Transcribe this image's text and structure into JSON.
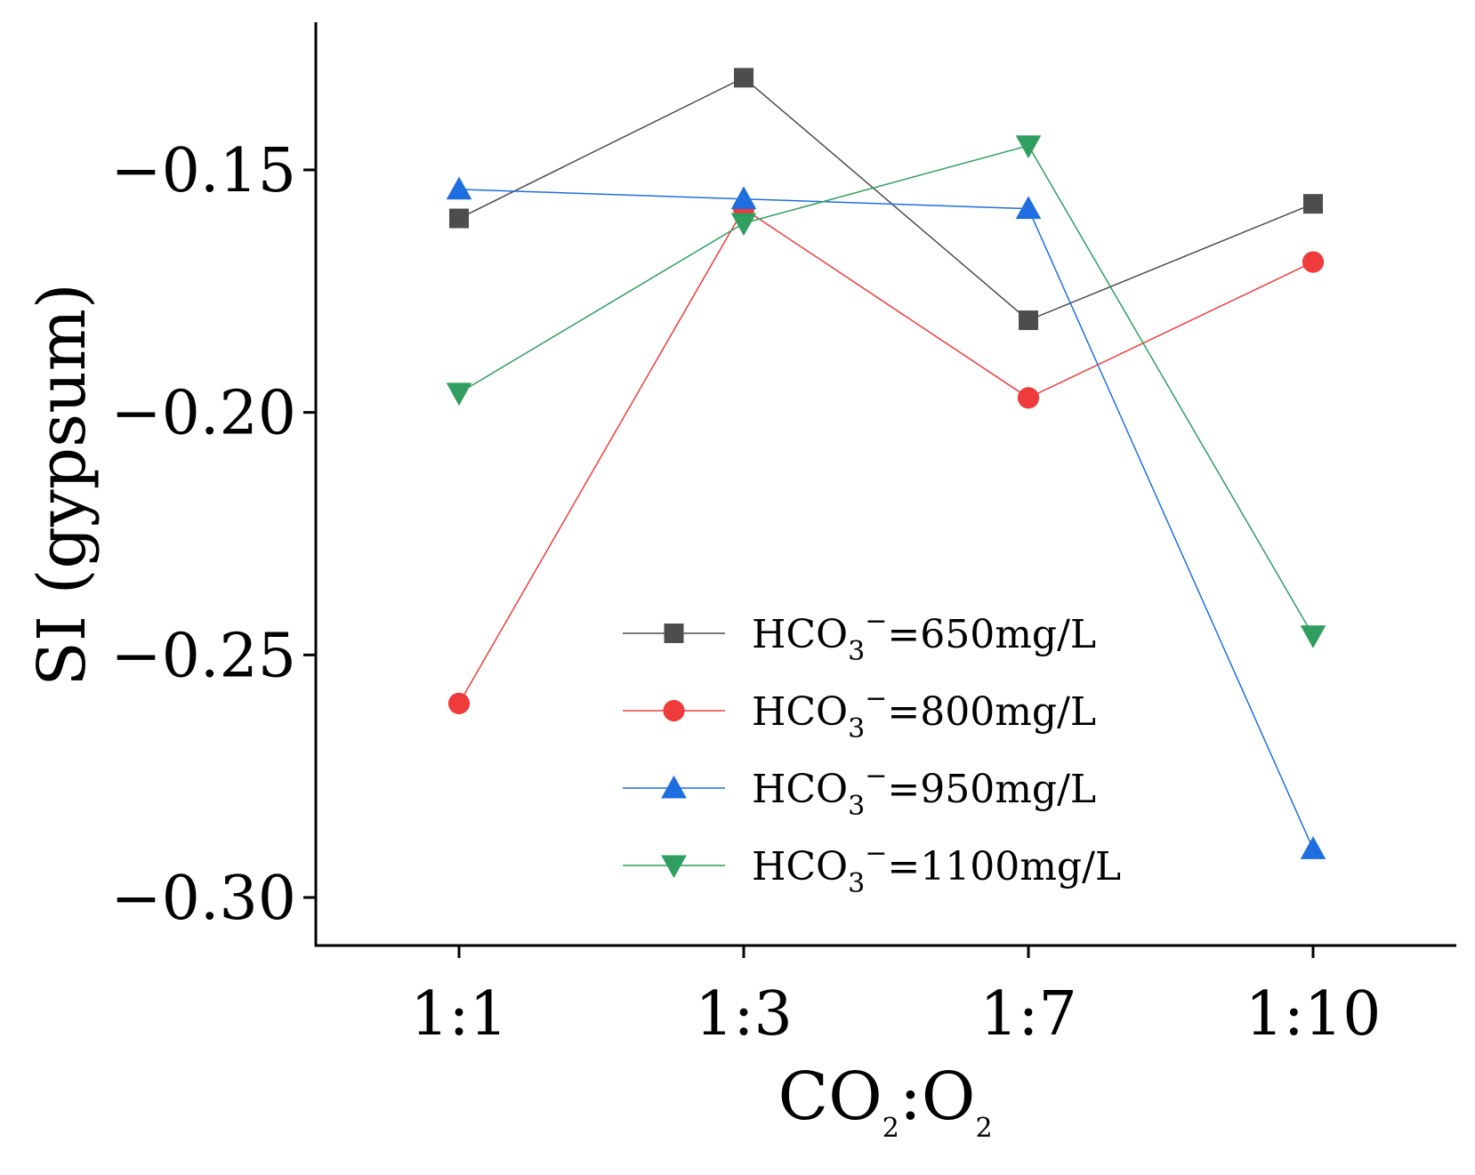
{
  "chart_data": {
    "type": "line",
    "title": "",
    "xlabel": {
      "main": "CO",
      "sub1": "2",
      "mid": ":O",
      "sub2": "2"
    },
    "ylabel": "SI (gypsum)",
    "categories": [
      "1:1",
      "1:3",
      "1:7",
      "1:10"
    ],
    "yticks": [
      -0.15,
      -0.2,
      -0.25,
      -0.3
    ],
    "ytick_labels": [
      "−0.15",
      "−0.20",
      "−0.25",
      "−0.30"
    ],
    "ylim": [
      -0.31,
      -0.12
    ],
    "grid": false,
    "legend_position": "center-right",
    "series": [
      {
        "name": "HCO3−=650mg/L",
        "label_main": "HCO",
        "label_sub": "3",
        "label_sup": "−",
        "label_rest": "=650mg/L",
        "color": "#4d4d4d",
        "marker": "square",
        "values": [
          -0.16,
          -0.131,
          -0.181,
          -0.157
        ]
      },
      {
        "name": "HCO3−=800mg/L",
        "label_main": "HCO",
        "label_sub": "3",
        "label_sup": "−",
        "label_rest": "=800mg/L",
        "color": "#ef3b3b",
        "marker": "circle",
        "values": [
          -0.26,
          -0.158,
          -0.197,
          -0.169
        ]
      },
      {
        "name": "HCO3−=950mg/L",
        "label_main": "HCO",
        "label_sub": "3",
        "label_sup": "−",
        "label_rest": "=950mg/L",
        "color": "#1f6ee0",
        "marker": "triangle-up",
        "values": [
          -0.154,
          -0.156,
          -0.158,
          -0.29
        ]
      },
      {
        "name": "HCO3−=1100mg/L",
        "label_main": "HCO",
        "label_sub": "3",
        "label_sup": "−",
        "label_rest": "=1100mg/L",
        "color": "#2f9e5f",
        "marker": "triangle-down",
        "values": [
          -0.196,
          -0.161,
          -0.145,
          -0.246
        ]
      }
    ]
  }
}
